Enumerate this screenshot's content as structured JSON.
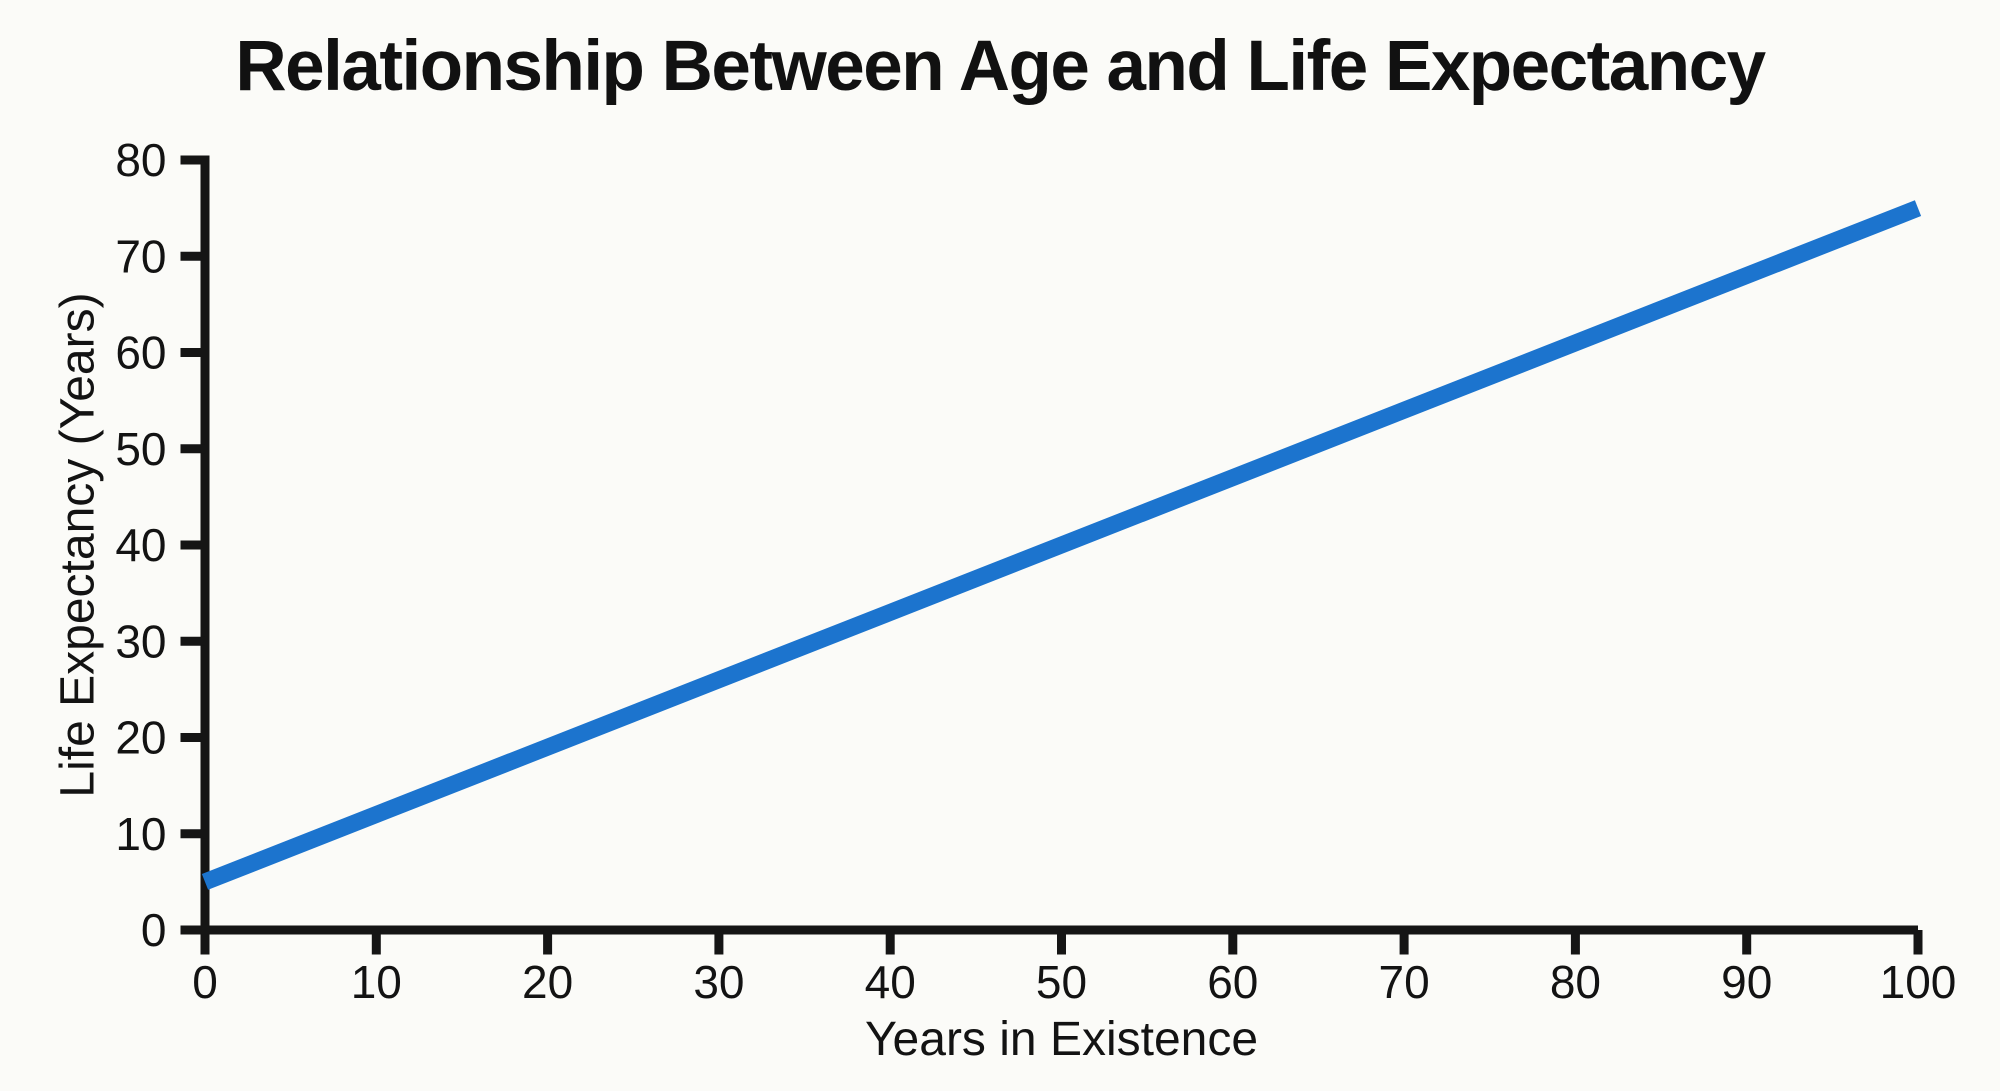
{
  "chart_data": {
    "type": "line",
    "title": "Relationship Between Age and Life Expectancy",
    "xlabel": "Years in Existence",
    "ylabel": "Life Expectancy (Years)",
    "xlim": [
      0,
      100
    ],
    "ylim": [
      0,
      80
    ],
    "xticks": [
      0,
      10,
      20,
      30,
      40,
      50,
      60,
      70,
      80,
      90,
      100
    ],
    "yticks": [
      0,
      10,
      20,
      30,
      40,
      50,
      60,
      70,
      80
    ],
    "grid": false,
    "legend": "none",
    "series": [
      {
        "name": "life-expectancy-line",
        "x": [
          0,
          100
        ],
        "y": [
          5,
          75
        ],
        "color": "#1c74ce"
      }
    ],
    "axis_color": "#151515",
    "text_color": "#131313",
    "background_color": "#fbfbf8"
  }
}
